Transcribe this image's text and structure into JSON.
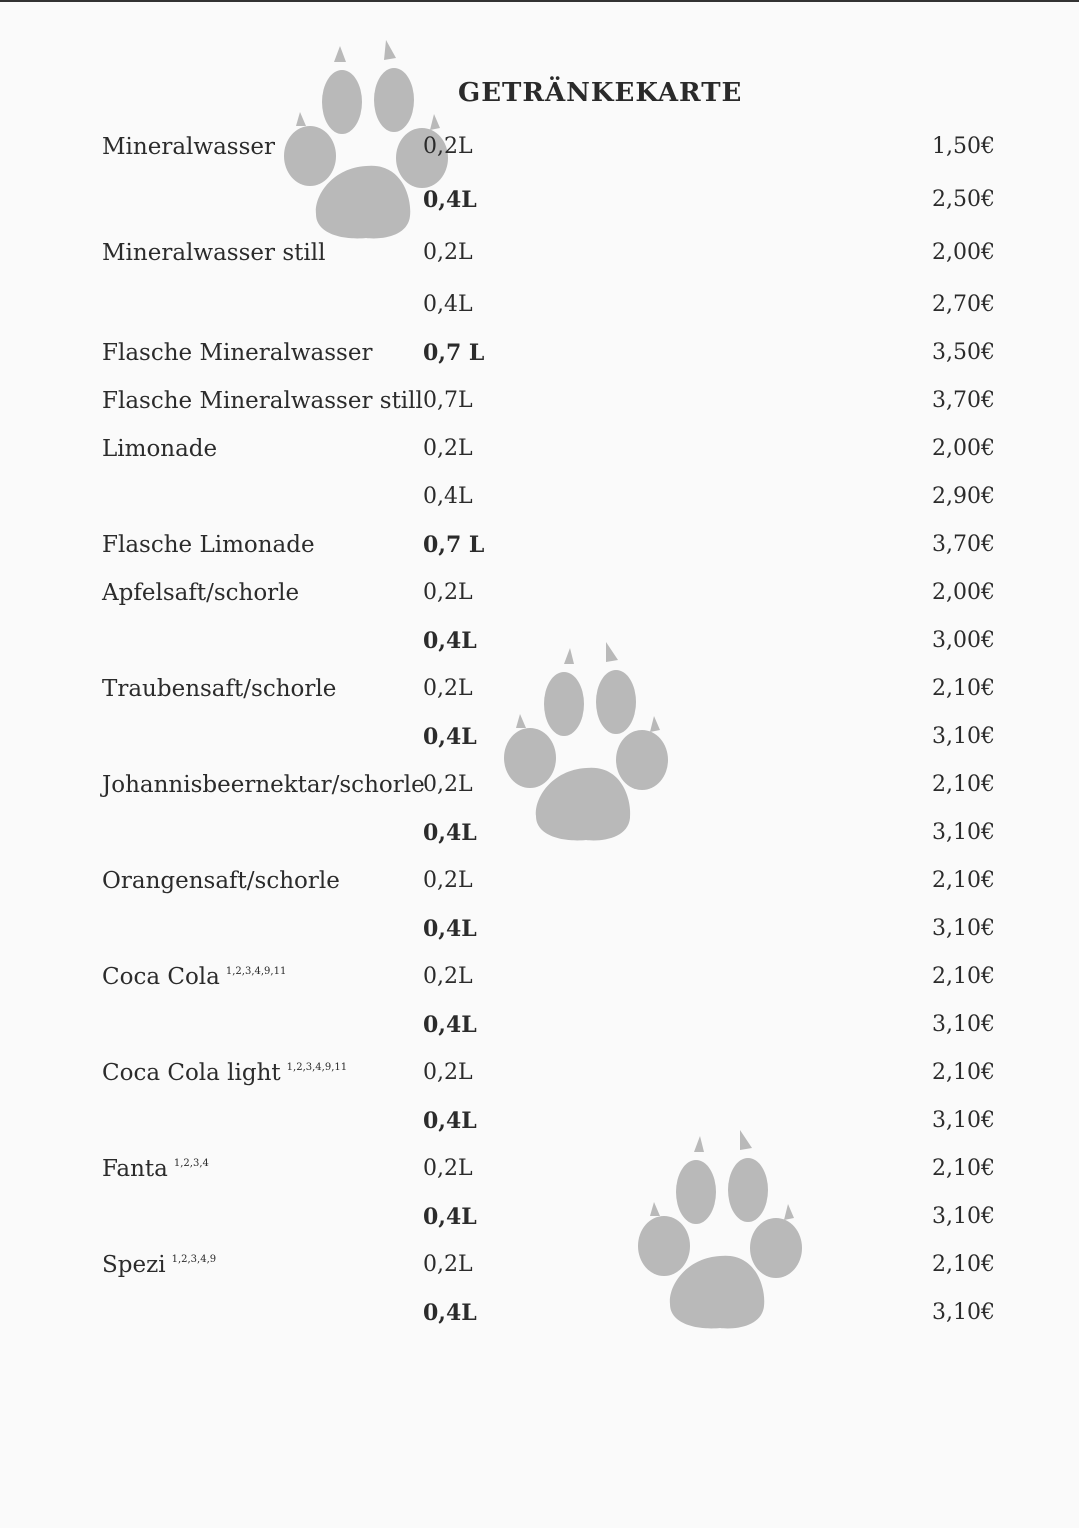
{
  "menu": {
    "title": "GETRÄNKEKARTE",
    "items": [
      {
        "name": "Mineralwasser",
        "sup": "",
        "size": "0,2L",
        "bold": false,
        "price": "1,50€"
      },
      {
        "name": "",
        "sup": "",
        "size": "0,4L",
        "bold": true,
        "price": "2,50€"
      },
      {
        "name": "Mineralwasser still",
        "sup": "",
        "size": "0,2L",
        "bold": false,
        "price": "2,00€"
      },
      {
        "name": "",
        "sup": "",
        "size": "0,4L",
        "bold": false,
        "price": "2,70€"
      },
      {
        "name": "Flasche Mineralwasser",
        "sup": "",
        "size": "0,7 L",
        "bold": true,
        "price": "3,50€"
      },
      {
        "name": "Flasche Mineralwasser still",
        "sup": "",
        "size": "0,7L",
        "bold": false,
        "price": "3,70€"
      },
      {
        "name": "Limonade",
        "sup": "",
        "size": "0,2L",
        "bold": false,
        "price": "2,00€"
      },
      {
        "name": "",
        "sup": "",
        "size": "0,4L",
        "bold": false,
        "price": "2,90€"
      },
      {
        "name": "Flasche Limonade",
        "sup": "",
        "size": "0,7 L",
        "bold": true,
        "price": "3,70€"
      },
      {
        "name": "Apfelsaft/schorle",
        "sup": "",
        "size": "0,2L",
        "bold": false,
        "price": "2,00€"
      },
      {
        "name": "",
        "sup": "",
        "size": "0,4L",
        "bold": true,
        "price": "3,00€"
      },
      {
        "name": "Traubensaft/schorle",
        "sup": "",
        "size": "0,2L",
        "bold": false,
        "price": "2,10€"
      },
      {
        "name": "",
        "sup": "",
        "size": "0,4L",
        "bold": true,
        "price": "3,10€"
      },
      {
        "name": "Johannisbeernektar/schorle",
        "sup": "",
        "size": "0,2L",
        "bold": false,
        "price": "2,10€"
      },
      {
        "name": "",
        "sup": "",
        "size": "0,4L",
        "bold": true,
        "price": "3,10€"
      },
      {
        "name": "Orangensaft/schorle",
        "sup": "",
        "size": "0,2L",
        "bold": false,
        "price": "2,10€"
      },
      {
        "name": "",
        "sup": "",
        "size": "0,4L",
        "bold": true,
        "price": "3,10€"
      },
      {
        "name": "Coca Cola",
        "sup": "1,2,3,4,9,11",
        "size": "0,2L",
        "bold": false,
        "price": "2,10€"
      },
      {
        "name": "",
        "sup": "",
        "size": "0,4L",
        "bold": true,
        "price": "3,10€"
      },
      {
        "name": "Coca Cola light",
        "sup": "1,2,3,4,9,11",
        "size": "0,2L",
        "bold": false,
        "price": "2,10€"
      },
      {
        "name": "",
        "sup": "",
        "size": "0,4L",
        "bold": true,
        "price": "3,10€"
      },
      {
        "name": "Fanta",
        "sup": "1,2,3,4",
        "size": "0,2L",
        "bold": false,
        "price": "2,10€"
      },
      {
        "name": "",
        "sup": "",
        "size": "0,4L",
        "bold": true,
        "price": "3,10€"
      },
      {
        "name": "Spezi",
        "sup": "1,2,3,4,9",
        "size": "0,2L",
        "bold": false,
        "price": "2,10€"
      },
      {
        "name": "",
        "sup": "",
        "size": "0,4L",
        "bold": true,
        "price": "3,10€"
      }
    ]
  },
  "decor": {
    "paw_color": "#b9b9b9",
    "paw_icon": "paw-print"
  }
}
